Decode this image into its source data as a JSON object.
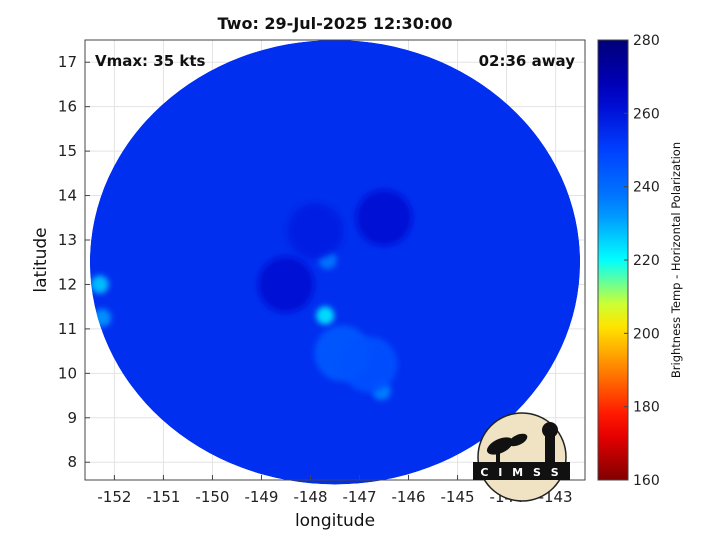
{
  "title": "Two: 29-Jul-2025 12:30:00",
  "vmax_label": "Vmax: 35 kts",
  "time_away_label": "02:36 away",
  "colorbar": {
    "label": "Brightness Temp - Horizontal Polarization",
    "min": 160,
    "max": 280,
    "ticks": [
      160,
      180,
      200,
      220,
      240,
      260,
      280
    ]
  },
  "logo_text": "CIMSS",
  "chart_data": {
    "type": "heatmap",
    "xlabel": "longitude",
    "ylabel": "latitude",
    "xlim": [
      -152.6,
      -142.4
    ],
    "ylim": [
      7.6,
      17.5
    ],
    "xticks": [
      -152,
      -151,
      -150,
      -149,
      -148,
      -147,
      -146,
      -145,
      -144,
      -143
    ],
    "yticks": [
      8,
      9,
      10,
      11,
      12,
      13,
      14,
      15,
      16,
      17
    ],
    "grid": true,
    "swath_center": [
      -147.5,
      12.5
    ],
    "swath_radius_deg": 5.0,
    "background_value": 254,
    "features": [
      {
        "lon": -147.65,
        "lat": 12.55,
        "value": 236
      },
      {
        "lon": -147.7,
        "lat": 11.3,
        "value": 222
      },
      {
        "lon": -152.3,
        "lat": 12.0,
        "value": 226
      },
      {
        "lon": -152.25,
        "lat": 11.25,
        "value": 232
      },
      {
        "lon": -146.55,
        "lat": 9.6,
        "value": 234
      },
      {
        "lon": -147.35,
        "lat": 10.45,
        "value": 244
      },
      {
        "lon": -146.8,
        "lat": 10.2,
        "value": 246
      },
      {
        "lon": -147.9,
        "lat": 13.2,
        "value": 258
      },
      {
        "lon": -148.5,
        "lat": 12.0,
        "value": 262
      },
      {
        "lon": -146.5,
        "lat": 13.5,
        "value": 262
      }
    ]
  }
}
